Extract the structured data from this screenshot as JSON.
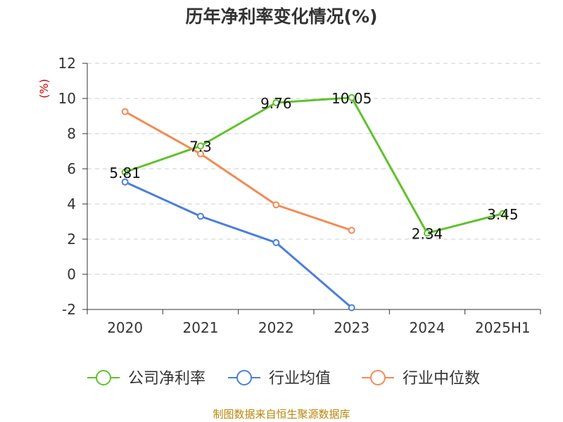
{
  "title": "历年净利率变化情况(%)",
  "source": "制图数据来自恒生聚源数据库",
  "chart_data": {
    "type": "line",
    "title": "历年净利率变化情况(%)",
    "ylabel": "(%)",
    "xlabel": "",
    "categories": [
      "2020",
      "2021",
      "2022",
      "2023",
      "2024",
      "2025H1"
    ],
    "ylim": [
      -2,
      12
    ],
    "yticks": [
      -2,
      0,
      2,
      4,
      6,
      8,
      10,
      12
    ],
    "grid": true,
    "legend_position": "bottom",
    "series": [
      {
        "name": "公司净利率",
        "color": "#5ec22b",
        "values": [
          5.81,
          7.3,
          9.76,
          10.05,
          2.34,
          3.45
        ],
        "labels": [
          "5.81",
          "7.3",
          "9.76",
          "10.05",
          "2.34",
          "3.45"
        ]
      },
      {
        "name": "行业均值",
        "color": "#4a7fdb",
        "values": [
          5.25,
          3.3,
          1.8,
          -1.9,
          null,
          null
        ]
      },
      {
        "name": "行业中位数",
        "color": "#f48a52",
        "values": [
          9.25,
          6.85,
          3.95,
          2.5,
          null,
          null
        ]
      }
    ]
  }
}
